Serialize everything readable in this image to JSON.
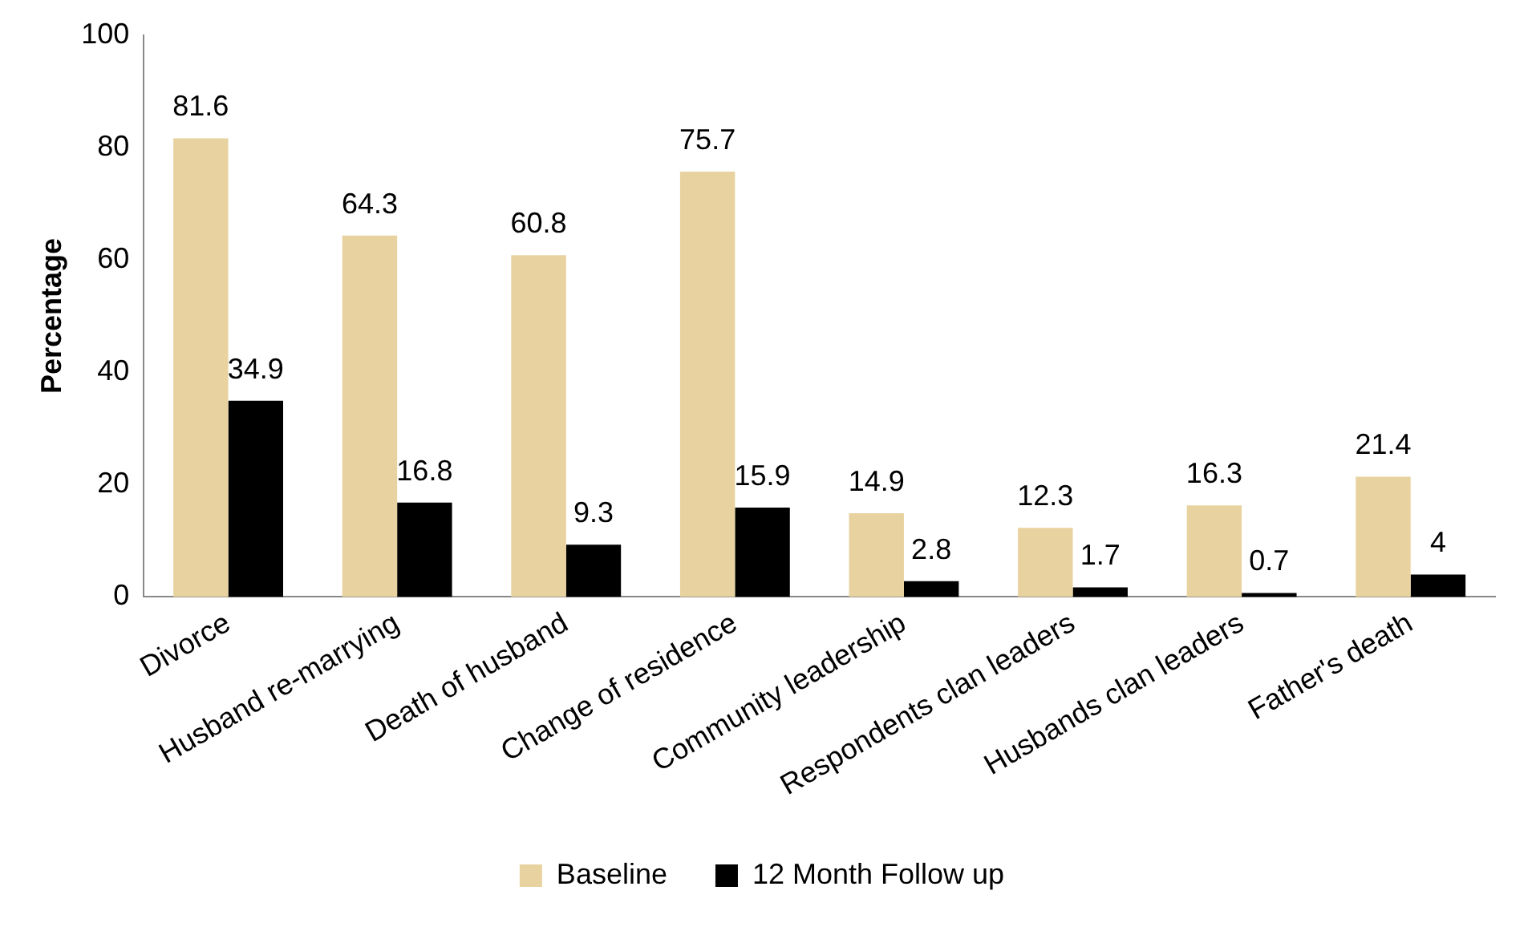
{
  "chart_data": {
    "type": "bar",
    "ylabel": "Percentage",
    "categories": [
      "Divorce",
      "Husband re-marrying",
      "Death of husband",
      "Change of residence",
      "Community leadership",
      "Respondents clan leaders",
      "Husbands clan leaders",
      "Father's death"
    ],
    "series": [
      {
        "name": "Baseline",
        "color": "#e8d3a0",
        "values": [
          81.6,
          64.3,
          60.8,
          75.7,
          14.9,
          12.3,
          16.3,
          21.4
        ]
      },
      {
        "name": "12 Month Follow up",
        "color": "#000000",
        "values": [
          34.9,
          16.8,
          9.3,
          15.9,
          2.8,
          1.7,
          0.7,
          4
        ]
      }
    ],
    "ylim": [
      0,
      100
    ],
    "yticks": [
      0,
      20,
      40,
      60,
      80,
      100
    ],
    "grid": false,
    "legend": "bottom",
    "data_labels": true
  }
}
